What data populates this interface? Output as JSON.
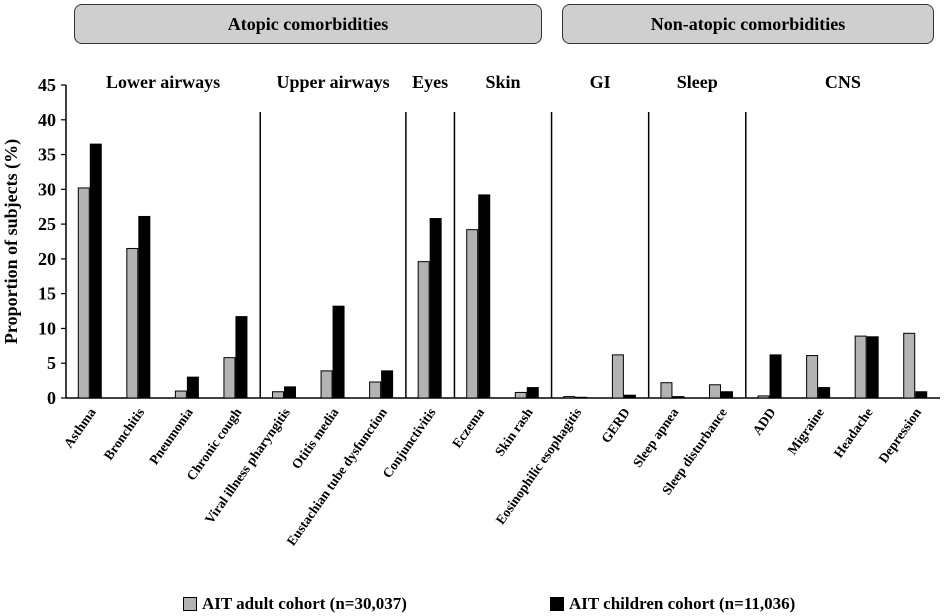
{
  "chart_data": {
    "type": "bar",
    "groups": [
      {
        "name": "Atopic comorbidities",
        "subgroups": [
          "Lower airways",
          "Upper airways",
          "Eyes",
          "Skin"
        ]
      },
      {
        "name": "Non-atopic comorbidities",
        "subgroups": [
          "GI",
          "Sleep",
          "CNS"
        ]
      }
    ],
    "sections": [
      {
        "label": "Lower airways",
        "categories": [
          "Asthma",
          "Bronchitis",
          "Pneumonia",
          "Chronic cough"
        ]
      },
      {
        "label": "Upper airways",
        "categories": [
          "Viral illness pharyngitis",
          "Otitis media",
          "Eustachian tube dysfunction"
        ]
      },
      {
        "label": "Eyes",
        "categories": [
          "Conjunctivitis"
        ]
      },
      {
        "label": "Skin",
        "categories": [
          "Eczema",
          "Skin rash"
        ]
      },
      {
        "label": "GI",
        "categories": [
          "Eosinophilic esophagitis",
          "GERD"
        ]
      },
      {
        "label": "Sleep",
        "categories": [
          "Sleep apnea",
          "Sleep disturbance"
        ]
      },
      {
        "label": "CNS",
        "categories": [
          "ADD",
          "Migraine",
          "Headache",
          "Depression"
        ]
      }
    ],
    "categories": [
      "Asthma",
      "Bronchitis",
      "Pneumonia",
      "Chronic cough",
      "Viral illness pharyngitis",
      "Otitis media",
      "Eustachian tube dysfunction",
      "Conjunctivitis",
      "Eczema",
      "Skin rash",
      "Eosinophilic esophagitis",
      "GERD",
      "Sleep apnea",
      "Sleep disturbance",
      "ADD",
      "Migraine",
      "Headache",
      "Depression"
    ],
    "series": [
      {
        "name": "AIT adult cohort (n=30,037)",
        "color": "#b3b3b3",
        "values": [
          30.2,
          21.5,
          1.0,
          5.8,
          0.9,
          3.9,
          2.3,
          19.6,
          24.2,
          0.8,
          0.2,
          6.2,
          2.2,
          1.9,
          0.3,
          6.1,
          8.9,
          9.3
        ]
      },
      {
        "name": "AIT children cohort (n=11,036)",
        "color": "#000000",
        "values": [
          36.5,
          26.1,
          3.0,
          11.7,
          1.6,
          13.2,
          3.9,
          25.8,
          29.2,
          1.5,
          0.1,
          0.4,
          0.2,
          0.9,
          6.2,
          1.5,
          8.8,
          0.9
        ]
      }
    ],
    "ylabel": "Proportion of subjects (%)",
    "ylim": [
      0,
      45
    ],
    "yticks": [
      0,
      5,
      10,
      15,
      20,
      25,
      30,
      35,
      40,
      45
    ],
    "legend_position": "bottom"
  }
}
